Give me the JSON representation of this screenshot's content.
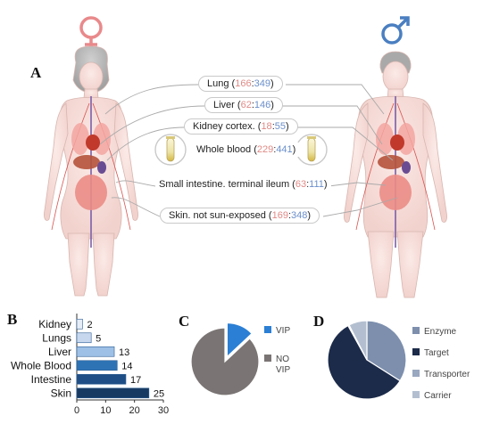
{
  "panels": {
    "a": "A",
    "b": "B",
    "c": "C",
    "d": "D"
  },
  "symbols": {
    "female": "female-sign",
    "male": "male-sign",
    "female_color": "#e9898b",
    "male_color": "#4a7fc1"
  },
  "counts_colors": {
    "female": "#e08a86",
    "male": "#6b8fcb"
  },
  "tissues": [
    {
      "name": "Lung",
      "female": "166",
      "male": "349"
    },
    {
      "name": "Liver",
      "female": "62",
      "male": "146"
    },
    {
      "name": "Kidney cortex.",
      "female": "18",
      "male": "55"
    },
    {
      "name": "Whole blood",
      "female": "229",
      "male": "441"
    },
    {
      "name": "Small intestine. terminal ileum",
      "female": "63",
      "male": "111"
    },
    {
      "name": "Skin. not sun-exposed",
      "female": "169",
      "male": "348"
    }
  ],
  "chart_data": [
    {
      "type": "bar",
      "orientation": "horizontal",
      "categories": [
        "Kidney",
        "Lungs",
        "Liver",
        "Whole Blood",
        "Intestine",
        "Skin"
      ],
      "values": [
        2,
        5,
        13,
        14,
        17,
        25
      ],
      "colors": [
        "#e6edf7",
        "#c6d7ee",
        "#9ec0e6",
        "#2e74b5",
        "#1f4e86",
        "#173a63"
      ],
      "xlim": [
        0,
        30
      ],
      "xticks": [
        0,
        10,
        20,
        30
      ],
      "grid": false
    },
    {
      "type": "pie",
      "labels": [
        "VIP",
        "NO VIP"
      ],
      "values": [
        13,
        87
      ],
      "colors": [
        "#2b7fd4",
        "#7a7574"
      ],
      "exploded": [
        "VIP"
      ],
      "legend": "right"
    },
    {
      "type": "pie",
      "labels": [
        "Enzyme",
        "Target",
        "Transporter",
        "Carrier"
      ],
      "values": [
        34,
        58,
        0.5,
        7.5
      ],
      "colors": [
        "#7d8fad",
        "#1c2b4a",
        "#9aa8c0",
        "#b3bfd0"
      ],
      "legend": "right"
    }
  ]
}
